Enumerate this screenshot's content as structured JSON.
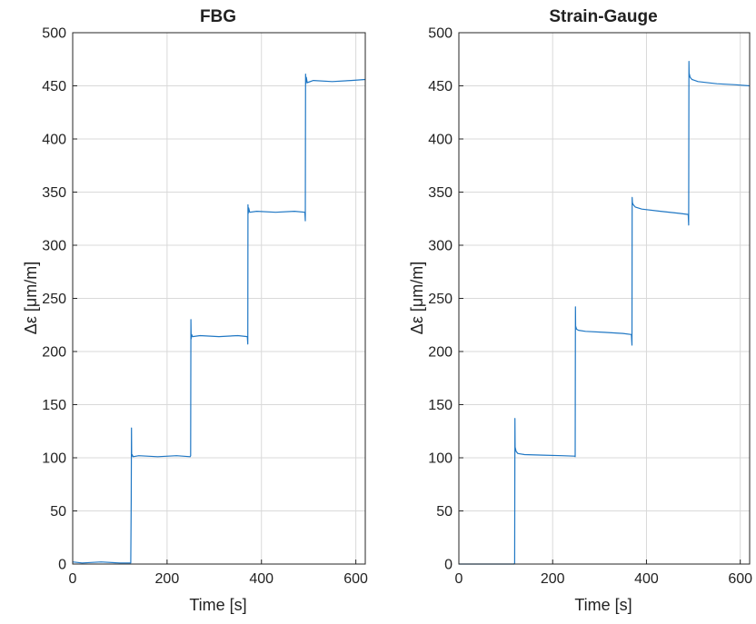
{
  "chart_data": [
    {
      "type": "line",
      "title": "FBG",
      "xlabel": "Time [s]",
      "ylabel": "Δε [μm/m]",
      "xlim": [
        0,
        620
      ],
      "ylim": [
        0,
        500
      ],
      "xticks": [
        0,
        200,
        400,
        600
      ],
      "yticks": [
        0,
        50,
        100,
        150,
        200,
        250,
        300,
        350,
        400,
        450,
        500
      ],
      "grid": true,
      "color": "#1f77c4",
      "series": [
        {
          "x": [
            0,
            20,
            60,
            100,
            123,
            124,
            124.5,
            125,
            126,
            128,
            140,
            180,
            220,
            249,
            250,
            250.5,
            251,
            252,
            254,
            270,
            310,
            350,
            370,
            371,
            371.5,
            372,
            373,
            375,
            390,
            430,
            470,
            492,
            493,
            493.5,
            494,
            495,
            497,
            510,
            550,
            590,
            620
          ],
          "y": [
            2,
            1,
            2,
            1,
            1,
            60,
            128,
            101,
            103,
            101,
            102,
            101,
            102,
            101,
            102,
            230,
            212,
            216,
            214,
            215,
            214,
            215,
            214,
            207,
            338,
            330,
            335,
            331,
            332,
            331,
            332,
            331,
            323,
            461,
            452,
            458,
            453,
            455,
            454,
            455,
            456
          ]
        }
      ]
    },
    {
      "type": "line",
      "title": "Strain-Gauge",
      "xlabel": "Time [s]",
      "ylabel": "Δε [μm/m]",
      "xlim": [
        0,
        620
      ],
      "ylim": [
        0,
        500
      ],
      "xticks": [
        0,
        200,
        400,
        600
      ],
      "yticks": [
        0,
        50,
        100,
        150,
        200,
        250,
        300,
        350,
        400,
        450,
        500
      ],
      "grid": true,
      "color": "#1f77c4",
      "series": [
        {
          "x": [
            0,
            60,
            118,
            119,
            119.5,
            120,
            122,
            126,
            140,
            180,
            220,
            247,
            248,
            248.5,
            249,
            251,
            255,
            270,
            310,
            350,
            368,
            369,
            369.5,
            370,
            372,
            376,
            390,
            430,
            470,
            489,
            490,
            490.5,
            491,
            493,
            497,
            510,
            550,
            590,
            620
          ],
          "y": [
            0,
            0,
            0,
            1,
            137,
            110,
            106,
            104,
            103,
            102.5,
            102,
            101.5,
            101,
            242,
            224,
            221,
            220,
            219,
            218,
            217,
            216,
            206,
            345,
            340,
            338,
            336,
            334,
            332,
            330,
            329,
            319,
            473,
            462,
            458,
            456,
            454,
            452,
            451,
            450
          ]
        }
      ]
    }
  ]
}
